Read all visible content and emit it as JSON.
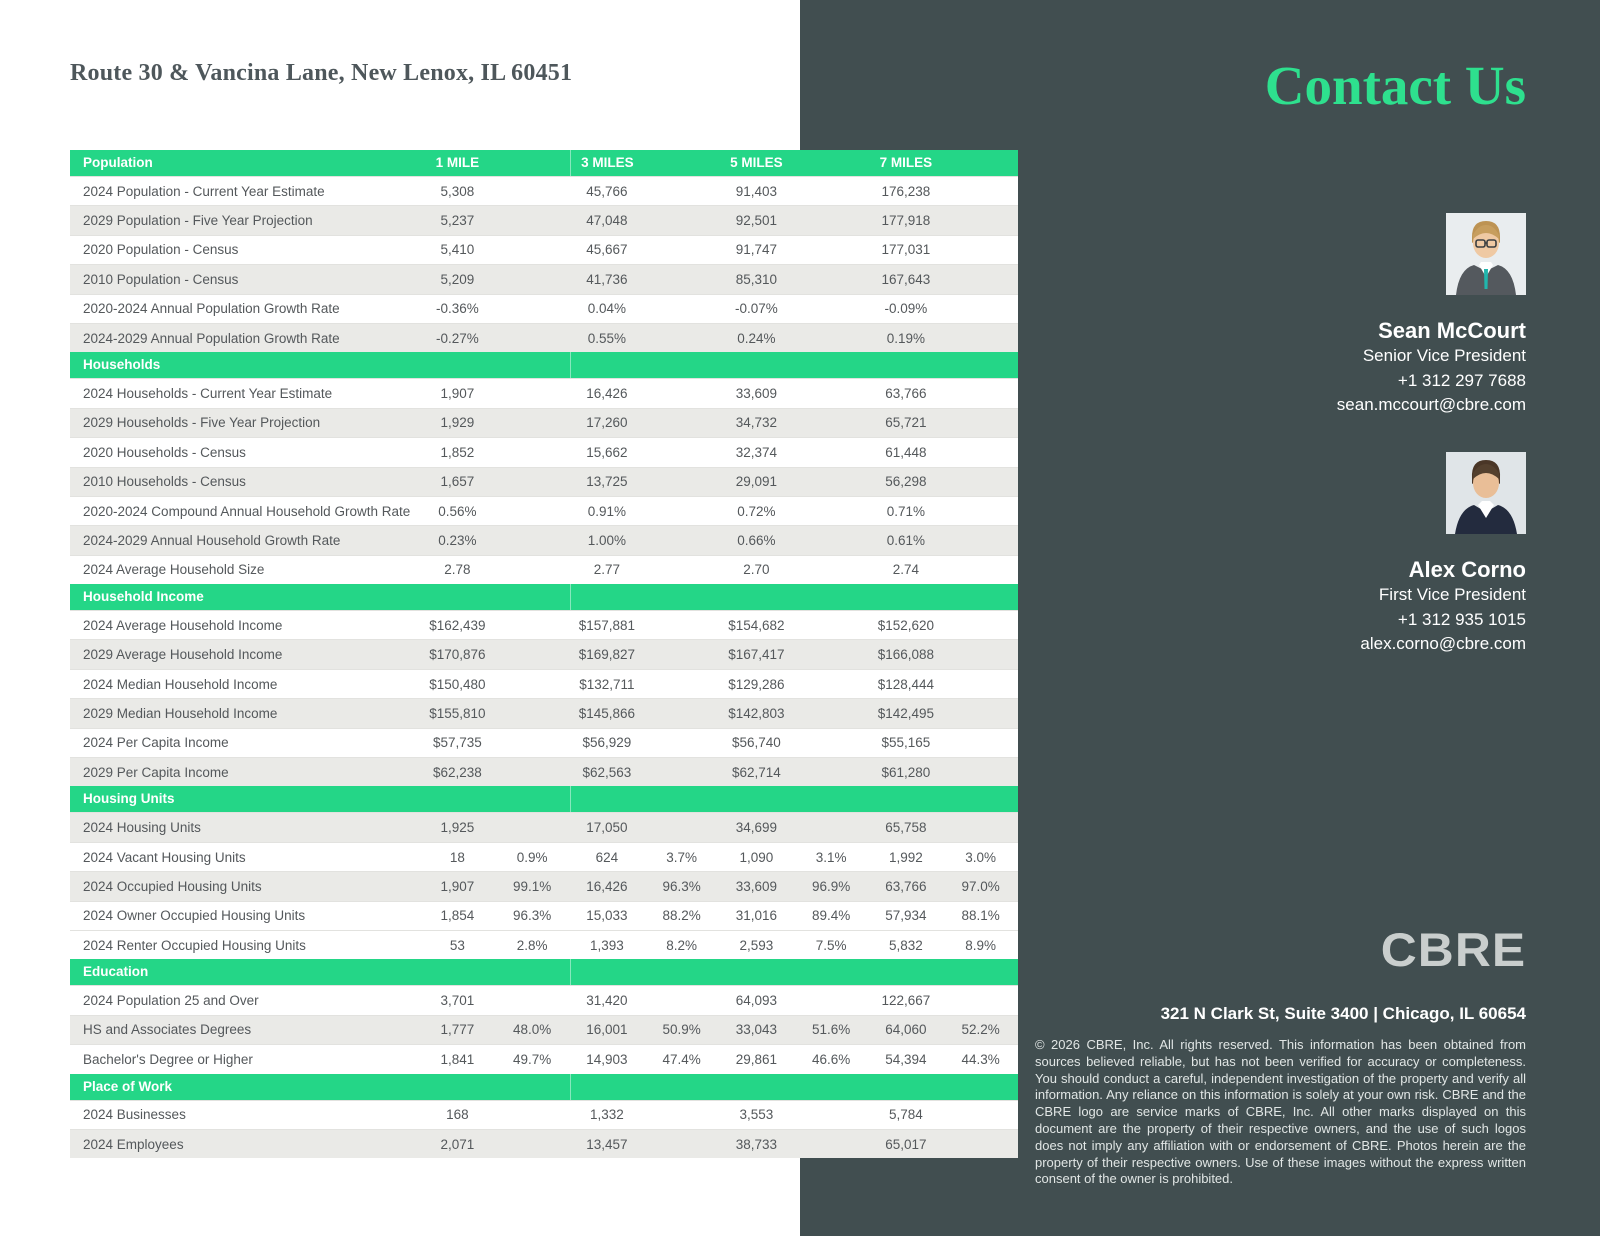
{
  "page": {
    "title": "Route 30 & Vancina Lane, New Lenox, IL 60451"
  },
  "colors": {
    "accent_green": "#24D687",
    "heading_green": "#2EE08E",
    "panel_dark": "#414E50",
    "row_shade": "#EAEAE7"
  },
  "table": {
    "columns": [
      "1 MILE",
      "3 MILES",
      "5 MILES",
      "7 MILES"
    ],
    "sections": [
      {
        "title": "Population",
        "rows": [
          {
            "label": "2024 Population - Current Year Estimate",
            "cells": [
              "5,308",
              "",
              "45,766",
              "",
              "91,403",
              "",
              "176,238",
              ""
            ],
            "shade": false
          },
          {
            "label": "2029 Population - Five Year Projection",
            "cells": [
              "5,237",
              "",
              "47,048",
              "",
              "92,501",
              "",
              "177,918",
              ""
            ],
            "shade": true
          },
          {
            "label": "2020 Population - Census",
            "cells": [
              "5,410",
              "",
              "45,667",
              "",
              "91,747",
              "",
              "177,031",
              ""
            ],
            "shade": false
          },
          {
            "label": "2010 Population - Census",
            "cells": [
              "5,209",
              "",
              "41,736",
              "",
              "85,310",
              "",
              "167,643",
              ""
            ],
            "shade": true
          },
          {
            "label": "2020-2024 Annual Population Growth Rate",
            "cells": [
              "-0.36%",
              "",
              "0.04%",
              "",
              "-0.07%",
              "",
              "-0.09%",
              ""
            ],
            "shade": false
          },
          {
            "label": "2024-2029 Annual Population Growth Rate",
            "cells": [
              "-0.27%",
              "",
              "0.55%",
              "",
              "0.24%",
              "",
              "0.19%",
              ""
            ],
            "shade": true
          }
        ]
      },
      {
        "title": "Households",
        "rows": [
          {
            "label": "2024 Households - Current Year Estimate",
            "cells": [
              "1,907",
              "",
              "16,426",
              "",
              "33,609",
              "",
              "63,766",
              ""
            ],
            "shade": false
          },
          {
            "label": "2029 Households - Five Year Projection",
            "cells": [
              "1,929",
              "",
              "17,260",
              "",
              "34,732",
              "",
              "65,721",
              ""
            ],
            "shade": true
          },
          {
            "label": "2020 Households - Census",
            "cells": [
              "1,852",
              "",
              "15,662",
              "",
              "32,374",
              "",
              "61,448",
              ""
            ],
            "shade": false
          },
          {
            "label": "2010 Households - Census",
            "cells": [
              "1,657",
              "",
              "13,725",
              "",
              "29,091",
              "",
              "56,298",
              ""
            ],
            "shade": true
          },
          {
            "label": "2020-2024 Compound Annual Household Growth Rate",
            "cells": [
              "0.56%",
              "",
              "0.91%",
              "",
              "0.72%",
              "",
              "0.71%",
              ""
            ],
            "shade": false
          },
          {
            "label": "2024-2029 Annual Household Growth Rate",
            "cells": [
              "0.23%",
              "",
              "1.00%",
              "",
              "0.66%",
              "",
              "0.61%",
              ""
            ],
            "shade": true
          },
          {
            "label": "2024 Average Household Size",
            "cells": [
              "2.78",
              "",
              "2.77",
              "",
              "2.70",
              "",
              "2.74",
              ""
            ],
            "shade": false
          }
        ]
      },
      {
        "title": "Household Income",
        "rows": [
          {
            "label": "2024 Average Household Income",
            "cells": [
              "$162,439",
              "",
              "$157,881",
              "",
              "$154,682",
              "",
              "$152,620",
              ""
            ],
            "shade": false
          },
          {
            "label": "2029 Average Household Income",
            "cells": [
              "$170,876",
              "",
              "$169,827",
              "",
              "$167,417",
              "",
              "$166,088",
              ""
            ],
            "shade": true
          },
          {
            "label": "2024 Median Household Income",
            "cells": [
              "$150,480",
              "",
              "$132,711",
              "",
              "$129,286",
              "",
              "$128,444",
              ""
            ],
            "shade": false
          },
          {
            "label": "2029 Median Household Income",
            "cells": [
              "$155,810",
              "",
              "$145,866",
              "",
              "$142,803",
              "",
              "$142,495",
              ""
            ],
            "shade": true
          },
          {
            "label": "2024 Per Capita Income",
            "cells": [
              "$57,735",
              "",
              "$56,929",
              "",
              "$56,740",
              "",
              "$55,165",
              ""
            ],
            "shade": false
          },
          {
            "label": "2029 Per Capita Income",
            "cells": [
              "$62,238",
              "",
              "$62,563",
              "",
              "$62,714",
              "",
              "$61,280",
              ""
            ],
            "shade": true
          }
        ]
      },
      {
        "title": "Housing Units",
        "rows": [
          {
            "label": "2024 Housing Units",
            "cells": [
              "1,925",
              "",
              "17,050",
              "",
              "34,699",
              "",
              "65,758",
              ""
            ],
            "shade": true
          },
          {
            "label": "2024 Vacant Housing Units",
            "cells": [
              "18",
              "0.9%",
              "624",
              "3.7%",
              "1,090",
              "3.1%",
              "1,992",
              "3.0%"
            ],
            "shade": false
          },
          {
            "label": "2024 Occupied Housing Units",
            "cells": [
              "1,907",
              "99.1%",
              "16,426",
              "96.3%",
              "33,609",
              "96.9%",
              "63,766",
              "97.0%"
            ],
            "shade": true
          },
          {
            "label": "2024 Owner Occupied Housing Units",
            "cells": [
              "1,854",
              "96.3%",
              "15,033",
              "88.2%",
              "31,016",
              "89.4%",
              "57,934",
              "88.1%"
            ],
            "shade": false
          },
          {
            "label": "2024 Renter Occupied Housing Units",
            "cells": [
              "53",
              "2.8%",
              "1,393",
              "8.2%",
              "2,593",
              "7.5%",
              "5,832",
              "8.9%"
            ],
            "shade": false
          }
        ]
      },
      {
        "title": "Education",
        "rows": [
          {
            "label": "2024 Population 25 and Over",
            "cells": [
              "3,701",
              "",
              "31,420",
              "",
              "64,093",
              "",
              "122,667",
              ""
            ],
            "shade": false
          },
          {
            "label": "HS and Associates Degrees",
            "cells": [
              "1,777",
              "48.0%",
              "16,001",
              "50.9%",
              "33,043",
              "51.6%",
              "64,060",
              "52.2%"
            ],
            "shade": true
          },
          {
            "label": "Bachelor's Degree or Higher",
            "cells": [
              "1,841",
              "49.7%",
              "14,903",
              "47.4%",
              "29,861",
              "46.6%",
              "54,394",
              "44.3%"
            ],
            "shade": false
          }
        ]
      },
      {
        "title": "Place of Work",
        "rows": [
          {
            "label": "2024 Businesses",
            "cells": [
              "168",
              "",
              "1,332",
              "",
              "3,553",
              "",
              "5,784",
              ""
            ],
            "shade": false
          },
          {
            "label": "2024 Employees",
            "cells": [
              "2,071",
              "",
              "13,457",
              "",
              "38,733",
              "",
              "65,017",
              ""
            ],
            "shade": true
          }
        ]
      }
    ]
  },
  "contact": {
    "heading": "Contact Us",
    "people": [
      {
        "name": "Sean McCourt",
        "title": "Senior Vice President",
        "phone": "+1 312 297 7688",
        "email": "sean.mccourt@cbre.com"
      },
      {
        "name": "Alex Corno",
        "title": "First Vice President",
        "phone": "+1 312 935 1015",
        "email": "alex.corno@cbre.com"
      }
    ],
    "logo_text": "CBRE",
    "address": "321 N Clark St, Suite 3400 | Chicago, IL 60654",
    "disclaimer": "© 2026 CBRE, Inc. All rights reserved. This information has been obtained from sources believed reliable, but has not been verified for accuracy or completeness. You should conduct a careful, independent investigation of the property and verify all information. Any reliance on this information is solely at your own risk. CBRE and the CBRE logo are service marks of CBRE, Inc. All other marks displayed on this document are the property of their respective owners, and the use of such logos does not imply any affiliation with or endorsement of CBRE. Photos herein are the property of their respective owners. Use of these images without the express written consent of the owner is prohibited."
  }
}
